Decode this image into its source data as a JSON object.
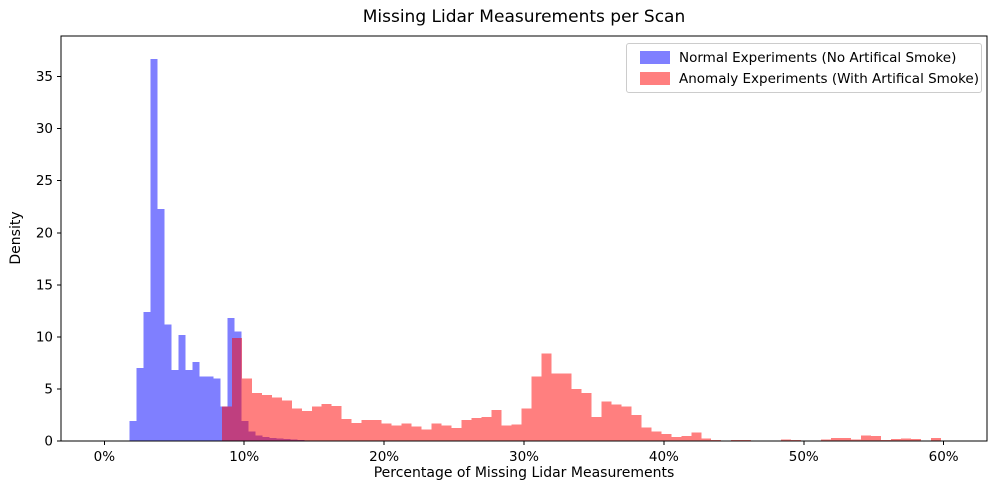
{
  "figure": {
    "title": "Missing Lidar Measurements per Scan",
    "xlabel": "Percentage of Missing Lidar Measurements",
    "ylabel": "Density"
  },
  "chart_data": {
    "type": "bar",
    "subtype": "overlapping-density-histogram",
    "title": "Missing Lidar Measurements per Scan",
    "xlabel": "Percentage of Missing Lidar Measurements",
    "ylabel": "Density",
    "xlim": [
      -3.1,
      63.1
    ],
    "ylim": [
      0,
      38.9
    ],
    "grid": false,
    "legend_position": "upper right",
    "xticks": [
      {
        "value": 0,
        "label": "0%"
      },
      {
        "value": 10,
        "label": "10%"
      },
      {
        "value": 20,
        "label": "20%"
      },
      {
        "value": 30,
        "label": "30%"
      },
      {
        "value": 40,
        "label": "40%"
      },
      {
        "value": 50,
        "label": "50%"
      },
      {
        "value": 60,
        "label": "60%"
      }
    ],
    "yticks": [
      0,
      5,
      10,
      15,
      20,
      25,
      30,
      35
    ],
    "series": [
      {
        "name": "Normal Experiments (No Artifical Smoke)",
        "color": "rgba(0,0,255,0.5)",
        "bin_start": 1.8,
        "bin_width": 0.5,
        "densities": [
          1.9,
          7.0,
          12.4,
          36.7,
          22.3,
          11.2,
          6.8,
          10.2,
          6.8,
          7.6,
          6.2,
          6.2,
          6.0,
          3.3,
          11.8,
          10.5,
          1.9,
          0.9,
          0.55,
          0.4,
          0.3,
          0.25,
          0.2,
          0.15,
          0.1
        ]
      },
      {
        "name": "Anomaly Experiments (With Artifical Smoke)",
        "color": "rgba(255,0,0,0.5)",
        "bin_start": 8.4,
        "bin_width": 0.714,
        "densities": [
          3.3,
          9.9,
          6.0,
          4.6,
          4.4,
          4.2,
          3.9,
          3.1,
          2.9,
          3.3,
          3.55,
          3.35,
          2.1,
          1.75,
          2.0,
          2.0,
          1.7,
          1.5,
          1.7,
          1.4,
          1.1,
          1.7,
          1.5,
          1.25,
          2.0,
          2.2,
          2.3,
          3.0,
          1.5,
          1.6,
          3.1,
          6.2,
          8.4,
          6.5,
          6.5,
          5.0,
          4.6,
          2.3,
          3.8,
          3.5,
          3.3,
          2.5,
          1.3,
          0.9,
          0.65,
          0.4,
          0.5,
          0.8,
          0.25,
          0.1,
          0,
          0.12,
          0.08,
          0,
          0,
          0,
          0.15,
          0.08,
          0,
          0,
          0.15,
          0.3,
          0.3,
          0.15,
          0.55,
          0.5,
          0.08,
          0.18,
          0.25,
          0.2,
          0,
          0.3
        ]
      }
    ]
  }
}
